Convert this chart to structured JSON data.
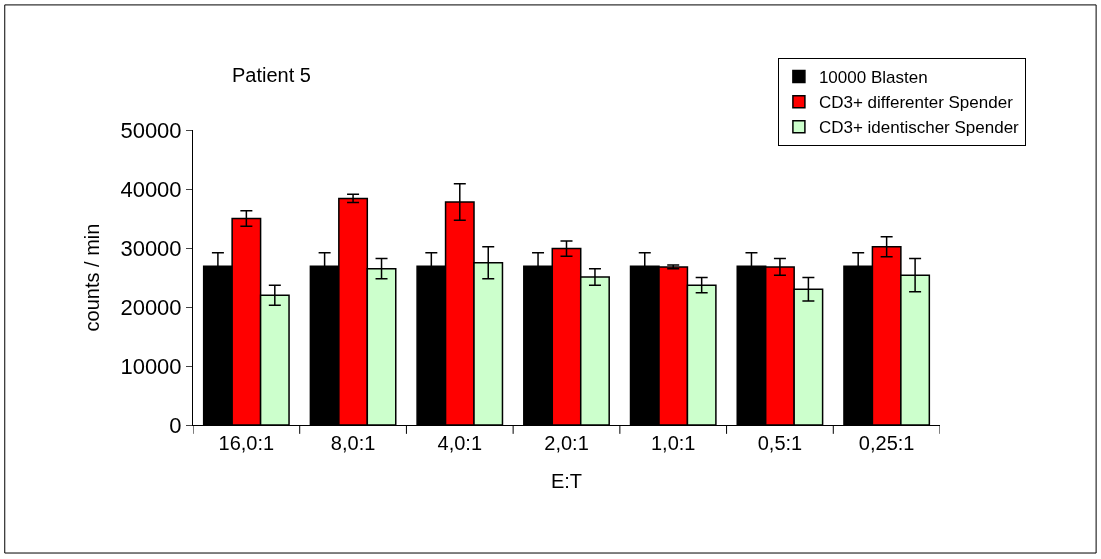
{
  "chart_data": {
    "type": "bar",
    "title": "Patient 5",
    "xlabel": "E:T",
    "ylabel": "counts / min",
    "categories": [
      "16,0:1",
      "8,0:1",
      "4,0:1",
      "2,0:1",
      "1,0:1",
      "0,5:1",
      "0,25:1"
    ],
    "series": [
      {
        "name": "10000 Blasten",
        "color": "#000000",
        "values": [
          26900,
          26900,
          26900,
          26900,
          26900,
          26900,
          26900
        ],
        "errors": [
          2300,
          2300,
          2300,
          2300,
          2300,
          2300,
          2300
        ]
      },
      {
        "name": "CD3+ differenter Spender",
        "color": "#ff0000",
        "values": [
          35000,
          38400,
          37800,
          29900,
          26800,
          26800,
          30200
        ],
        "errors": [
          1300,
          700,
          3100,
          1300,
          300,
          1400,
          1700
        ]
      },
      {
        "name": "CD3+ identischer Spender",
        "color": "#ccffcc",
        "values": [
          22000,
          26500,
          27500,
          25100,
          23700,
          23000,
          25400
        ],
        "errors": [
          1700,
          1700,
          2700,
          1400,
          1300,
          2000,
          2800
        ]
      }
    ],
    "ylim": [
      0,
      50000
    ],
    "yticks": [
      0,
      10000,
      20000,
      30000,
      40000,
      50000
    ],
    "legend": "top right"
  }
}
